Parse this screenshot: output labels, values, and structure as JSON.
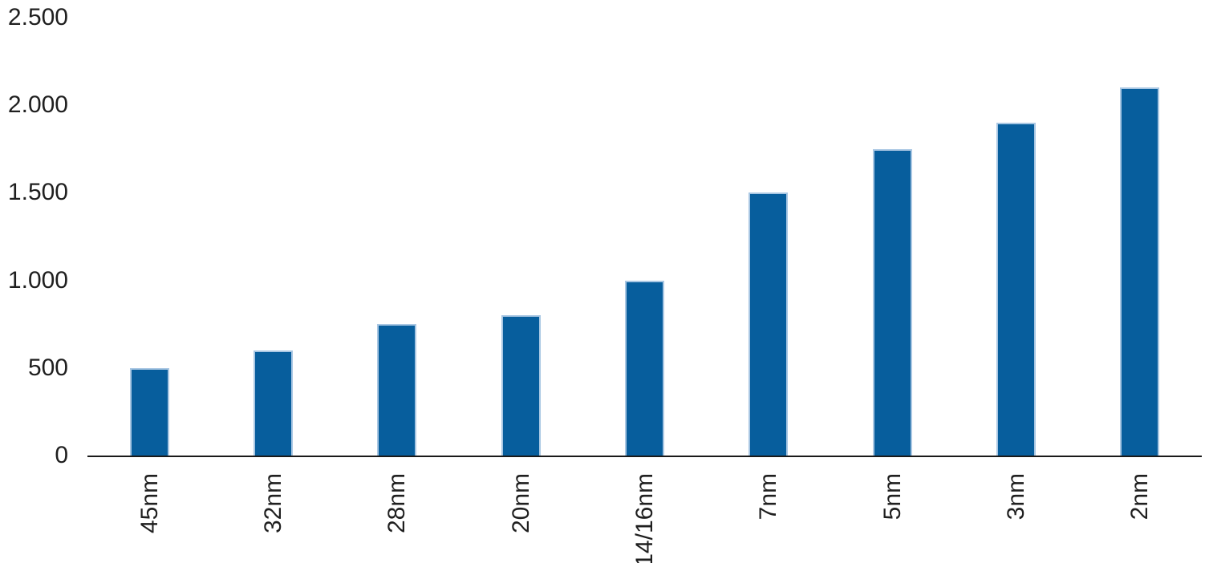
{
  "chart_data": {
    "type": "bar",
    "title": "",
    "xlabel": "",
    "ylabel": "",
    "categories": [
      "45nm",
      "32nm",
      "28nm",
      "20nm",
      "14/16nm",
      "7nm",
      "5nm",
      "3nm",
      "2nm"
    ],
    "values": [
      500,
      600,
      750,
      800,
      1000,
      1500,
      1750,
      1900,
      2100
    ],
    "ylim": [
      0,
      2500
    ],
    "yticks": [
      0,
      500,
      1000,
      1500,
      2000,
      2500
    ],
    "ytick_labels": [
      "0",
      "500",
      "1.000",
      "1.500",
      "2.000",
      "2.500"
    ],
    "number_format": "thousands-dot-separator",
    "grid": false,
    "legend": false,
    "x_label_rotation_degrees": 90,
    "colors": {
      "bar_fill": "#075E9D",
      "bar_border": "#A9C7E3",
      "axis_line": "#1A1A1A",
      "tick_text": "#1F1F1F",
      "background": "#FFFFFF"
    }
  }
}
